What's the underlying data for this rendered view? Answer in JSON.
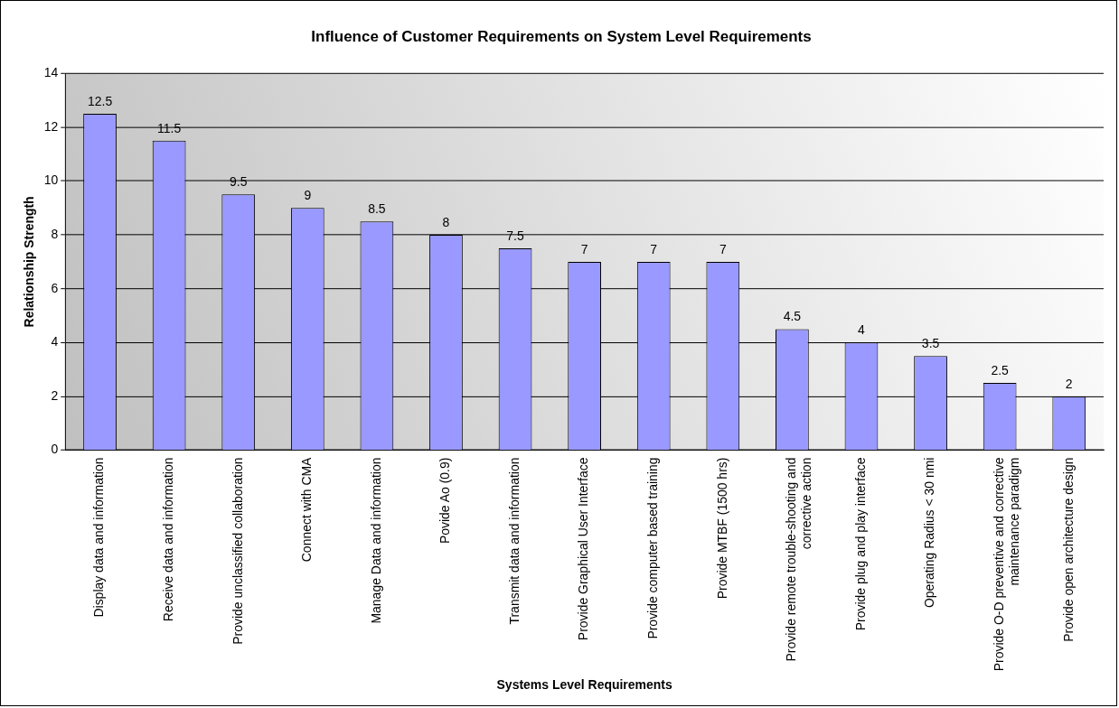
{
  "chart_data": {
    "type": "bar",
    "title": "Influence of Customer Requirements on System Level Requirements",
    "xlabel": "Systems Level Requirements",
    "ylabel": "Relationship Strength",
    "categories": [
      "Display data and information",
      "Receive data and information",
      "Provide unclassified collaboration",
      "Connect with CMA",
      "Manage Data and information",
      "Povide Ao (0.9)",
      "Transmit data and information",
      "Provide Graphical User Interface",
      "Provide computer based training",
      "Provide MTBF (1500 hrs)",
      "Provide remote trouble-shooting and corrective action",
      "Provide plug and play interface",
      "Operating Radius < 30 nmi",
      "Provide O-D preventive and corrective maintenance paradigm",
      "Provide open architecture design"
    ],
    "values": [
      12.5,
      11.5,
      9.5,
      9,
      8.5,
      8,
      7.5,
      7,
      7,
      7,
      4.5,
      4,
      3.5,
      2.5,
      2
    ],
    "color": "#9999ff",
    "ylim": [
      0,
      14
    ],
    "yticks": [
      0,
      2,
      4,
      6,
      8,
      10,
      12,
      14
    ],
    "grid": "y",
    "data_labels": true,
    "legend": false
  }
}
